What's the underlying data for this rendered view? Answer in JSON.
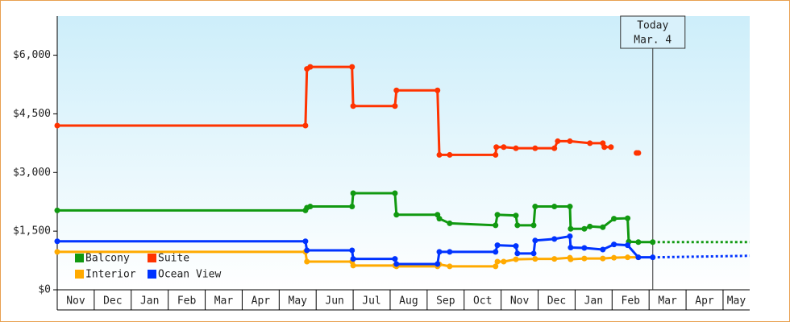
{
  "chart_data": {
    "type": "line",
    "categories": [
      "Nov",
      "Dec",
      "Jan",
      "Feb",
      "Mar",
      "Apr",
      "May",
      "Jun",
      "Jul",
      "Aug",
      "Sep",
      "Oct",
      "Nov",
      "Dec",
      "Jan",
      "Feb",
      "Mar",
      "Apr",
      "May"
    ],
    "xlim": [
      0,
      18.72
    ],
    "ylim": [
      0,
      7000
    ],
    "yticks": [
      {
        "value": 0,
        "label": "$0"
      },
      {
        "value": 1500,
        "label": "$1,500"
      },
      {
        "value": 3000,
        "label": "$3,000"
      },
      {
        "value": 4500,
        "label": "$4,500"
      },
      {
        "value": 6000,
        "label": "$6,000"
      }
    ],
    "annotation": {
      "text": [
        "Today",
        "Mar. 4"
      ],
      "x": 16.1
    },
    "series": [
      {
        "name": "Balcony",
        "color": "#119911",
        "x": [
          0,
          6.71,
          6.75,
          6.84,
          7.97,
          8.0,
          9.13,
          9.17,
          10.28,
          10.33,
          10.61,
          11.85,
          11.9,
          12.4,
          12.44,
          12.88,
          12.92,
          13.44,
          13.86,
          13.88,
          14.25,
          14.4,
          14.75,
          15.05,
          15.42,
          15.45,
          15.71,
          16.1
        ],
        "values": [
          2030,
          2030,
          2100,
          2130,
          2130,
          2470,
          2470,
          1920,
          1920,
          1820,
          1700,
          1650,
          1920,
          1900,
          1650,
          1650,
          2130,
          2130,
          2130,
          1560,
          1560,
          1620,
          1600,
          1820,
          1830,
          1230,
          1220,
          1220
        ],
        "forecast": {
          "x": [
            16.1,
            18.72
          ],
          "values": [
            1220,
            1220
          ]
        }
      },
      {
        "name": "Suite",
        "color": "#ff3300",
        "x": [
          0,
          6.71,
          6.75,
          6.84,
          7.97,
          8.0,
          9.13,
          9.17,
          10.28,
          10.33,
          10.61,
          11.85,
          11.87,
          12.07,
          12.4,
          12.92,
          13.44,
          13.53,
          13.86,
          14.4,
          14.75,
          14.79,
          14.97,
          15.3,
          15.66,
          15.71
        ],
        "values": [
          4200,
          4200,
          5650,
          5700,
          5700,
          4700,
          4700,
          5100,
          5100,
          3450,
          3450,
          3450,
          3650,
          3650,
          3620,
          3620,
          3620,
          3800,
          3800,
          3750,
          3750,
          3650,
          3650,
          null,
          3500,
          3500
        ]
      },
      {
        "name": "Interior",
        "color": "#ffaa00",
        "x": [
          0,
          6.71,
          6.75,
          7.97,
          8.0,
          9.13,
          9.17,
          10.28,
          10.33,
          10.61,
          11.85,
          11.9,
          12.07,
          12.4,
          12.92,
          13.44,
          13.86,
          13.88,
          14.25,
          14.75,
          15.05,
          15.42,
          15.71
        ],
        "values": [
          970,
          970,
          720,
          720,
          620,
          620,
          600,
          600,
          650,
          600,
          600,
          720,
          720,
          780,
          790,
          790,
          820,
          780,
          800,
          800,
          820,
          830,
          830
        ]
      },
      {
        "name": "Ocean View",
        "color": "#0033ff",
        "x": [
          0,
          6.71,
          6.75,
          7.97,
          8.0,
          9.13,
          9.17,
          10.28,
          10.33,
          10.61,
          11.85,
          11.9,
          12.4,
          12.44,
          12.88,
          12.92,
          13.44,
          13.86,
          13.88,
          14.25,
          14.75,
          15.05,
          15.42,
          15.71,
          16.1
        ],
        "values": [
          1240,
          1240,
          1010,
          1010,
          790,
          790,
          660,
          660,
          970,
          970,
          970,
          1140,
          1120,
          930,
          930,
          1260,
          1300,
          1370,
          1080,
          1070,
          1030,
          1160,
          1140,
          830,
          830
        ],
        "forecast": {
          "x": [
            16.1,
            18.72
          ],
          "values": [
            830,
            870
          ]
        }
      }
    ]
  }
}
